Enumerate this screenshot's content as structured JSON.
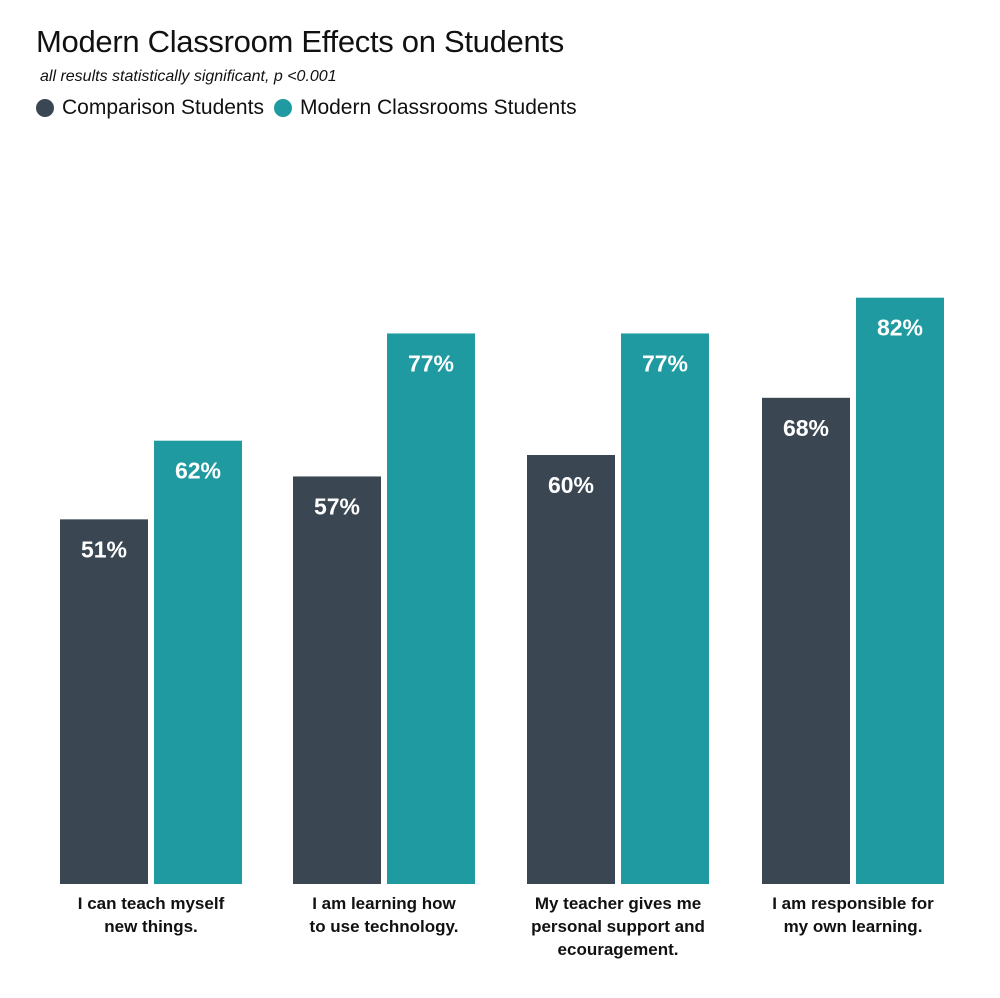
{
  "title": "Modern Classroom Effects on Students",
  "subtitle": "all results statistically significant, p <0.001",
  "legend": [
    {
      "name": "Comparison Students",
      "color": "#3a4752"
    },
    {
      "name": "Modern Classrooms Students",
      "color": "#1f9aa1"
    }
  ],
  "chart_data": {
    "type": "bar",
    "title": "Modern Classroom Effects on Students",
    "subtitle": "all results statistically significant, p <0.001",
    "categories": [
      [
        "I can teach myself",
        "new things."
      ],
      [
        "I am learning how",
        "to use technology."
      ],
      [
        "My teacher gives me",
        "personal support and",
        "ecouragement."
      ],
      [
        "I am responsible for",
        "my own learning."
      ]
    ],
    "series": [
      {
        "name": "Comparison Students",
        "color": "#3a4752",
        "values": [
          51,
          57,
          60,
          68
        ],
        "labels": [
          "51%",
          "57%",
          "60%",
          "68%"
        ]
      },
      {
        "name": "Modern Classrooms Students",
        "color": "#1f9aa1",
        "values": [
          62,
          77,
          77,
          82
        ],
        "labels": [
          "62%",
          "77%",
          "77%",
          "82%"
        ]
      }
    ],
    "value_suffix": "%",
    "ylim": [
      0,
      100
    ],
    "grid": false,
    "legend_position": "top-left"
  }
}
